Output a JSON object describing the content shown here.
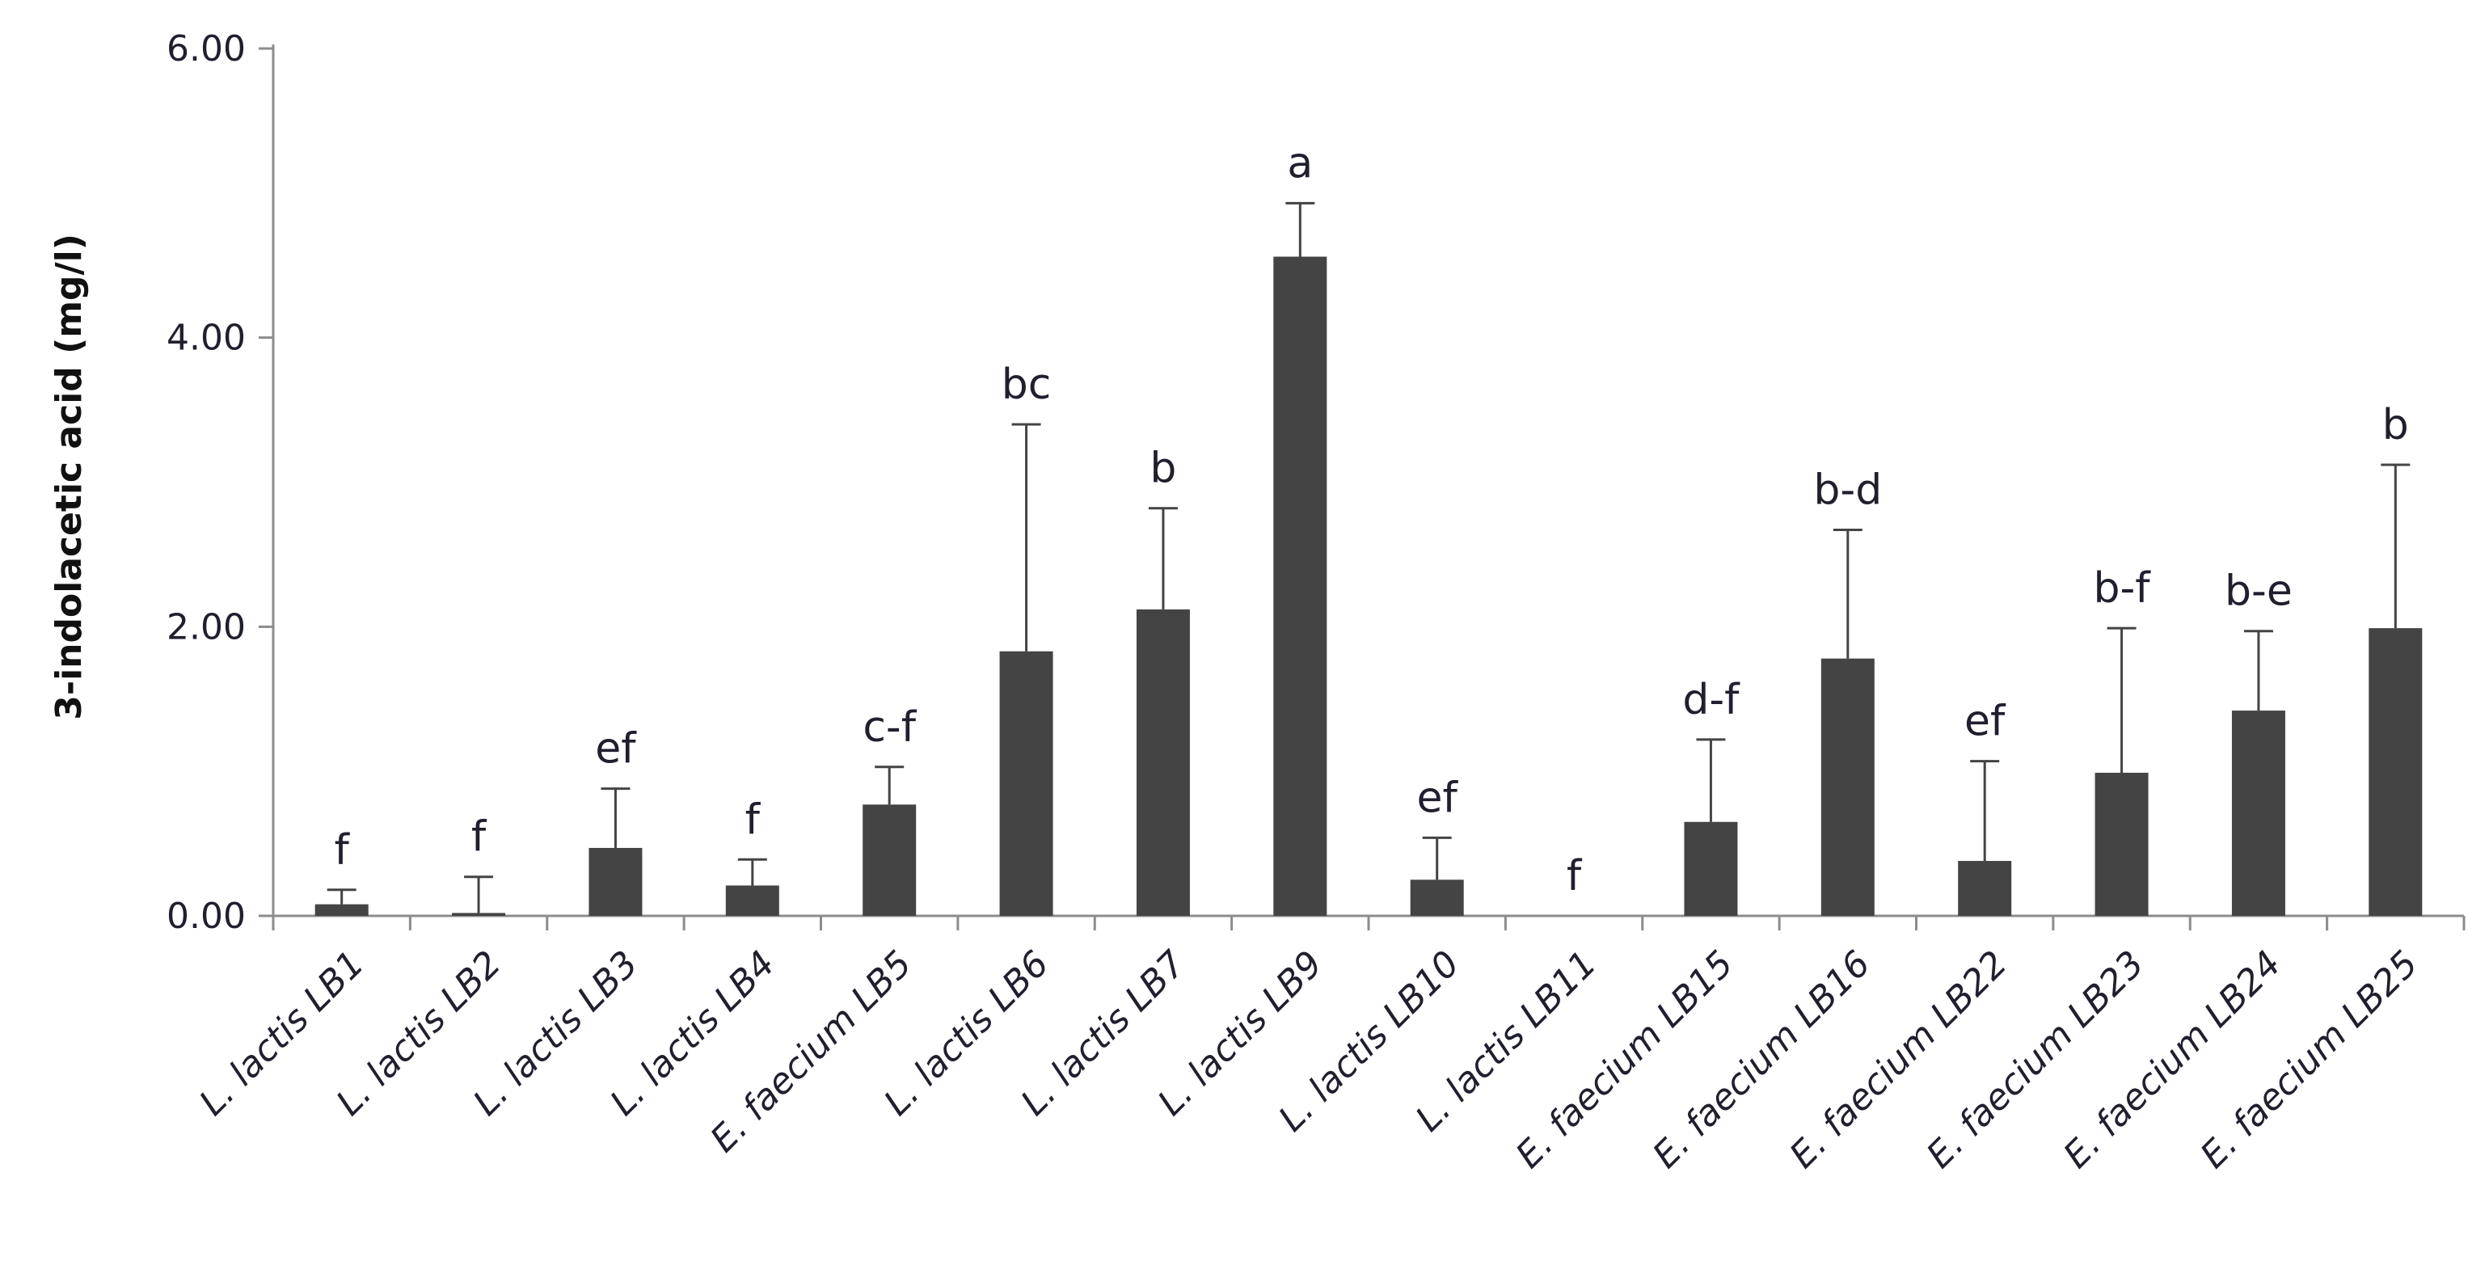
{
  "chart_data": {
    "type": "bar",
    "title": "",
    "xlabel": "",
    "ylabel": "3-indolacetic acid (mg/l)",
    "ylim": [
      0,
      6
    ],
    "yticks": [
      "0.00",
      "2.00",
      "4.00",
      "6.00"
    ],
    "grid": false,
    "legend": "none",
    "bar_color": "#444444",
    "axis_color": "#8c8c8c",
    "categories": [
      "L. lactis LB1",
      "L. lactis LB2",
      "L. lactis LB3",
      "L. lactis LB4",
      "E. faecium LB5",
      "L. lactis LB6",
      "L. lactis LB7",
      "L. lactis LB9",
      "L. lactis LB10",
      "L. lactis LB11",
      "E. faecium LB15",
      "E. faecium LB16",
      "E. faecium LB22",
      "E. faecium LB23",
      "E. faecium LB24",
      "E. faecium LB25"
    ],
    "values": [
      0.08,
      0.02,
      0.47,
      0.21,
      0.77,
      1.83,
      2.12,
      4.56,
      0.25,
      0.0,
      0.65,
      1.78,
      0.38,
      0.99,
      1.42,
      1.99
    ],
    "error_plus": [
      0.1,
      0.25,
      0.41,
      0.18,
      0.26,
      1.57,
      0.7,
      0.37,
      0.29,
      0.0,
      0.57,
      0.89,
      0.69,
      1.0,
      0.55,
      1.13
    ],
    "annotations": [
      "f",
      "f",
      "ef",
      "f",
      "c-f",
      "bc",
      "b",
      "a",
      "ef",
      "f",
      "d-f",
      "b-d",
      "ef",
      "b-f",
      "b-e",
      "b"
    ]
  }
}
